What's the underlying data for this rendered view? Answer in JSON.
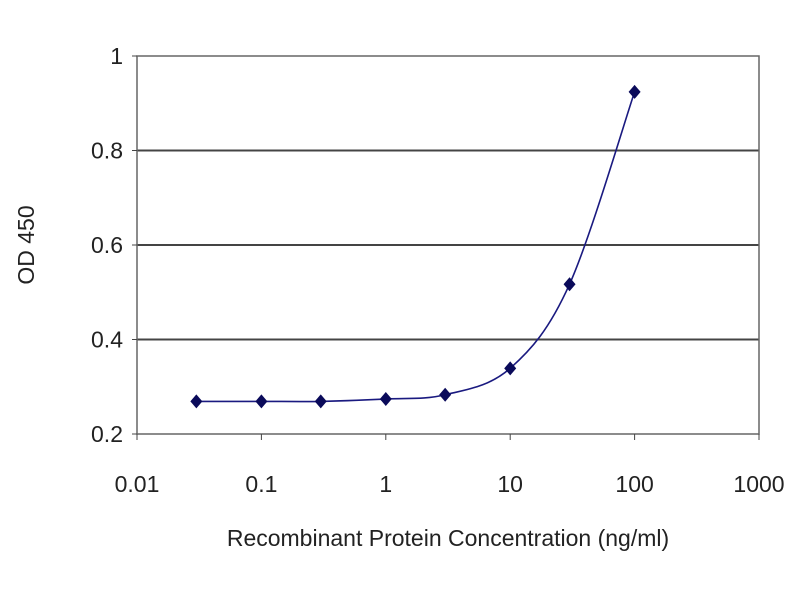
{
  "chart_data": {
    "type": "line",
    "title": "",
    "xlabel": "Recombinant Protein Concentration (ng/ml)",
    "ylabel": "OD 450",
    "x_scale": "log",
    "xlim": [
      0.01,
      1000
    ],
    "ylim": [
      0.2,
      1
    ],
    "x_ticks": [
      "0.01",
      "0.1",
      "1",
      "10",
      "100",
      "1000"
    ],
    "y_ticks": [
      "0.2",
      "0.4",
      "0.6",
      "0.8",
      "1"
    ],
    "grid": "horizontal",
    "legend": "none",
    "series": [
      {
        "x": [
          0.03,
          0.1,
          0.3,
          1,
          3,
          10,
          30,
          100
        ],
        "y": [
          0.269,
          0.269,
          0.269,
          0.274,
          0.283,
          0.339,
          0.517,
          0.924
        ],
        "color": "#1a1a80",
        "marker": "diamond",
        "smooth": true
      }
    ]
  }
}
